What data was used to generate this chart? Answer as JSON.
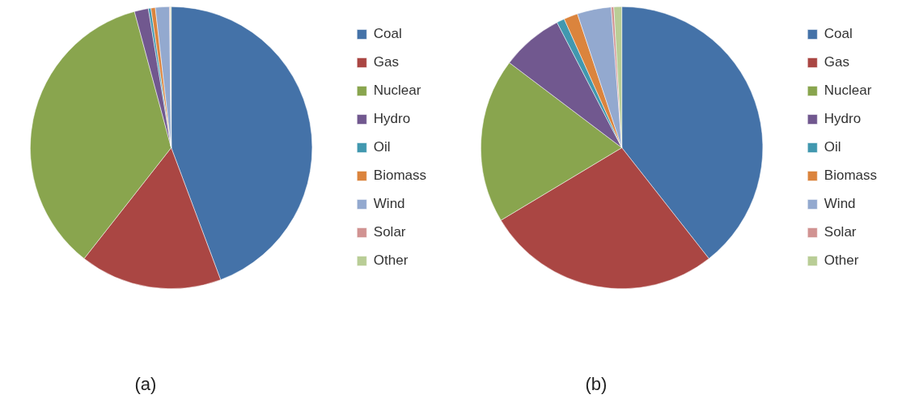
{
  "chart_data": [
    {
      "type": "pie",
      "title": "(a)",
      "categories": [
        "Coal",
        "Gas",
        "Nuclear",
        "Hydro",
        "Oil",
        "Biomass",
        "Wind",
        "Solar",
        "Other"
      ],
      "values": [
        44.3,
        16.3,
        35.2,
        1.6,
        0.3,
        0.5,
        1.6,
        0.1,
        0.1
      ],
      "colors": [
        "#4472a8",
        "#aa4643",
        "#89a54e",
        "#71588f",
        "#4198af",
        "#db843d",
        "#93a9cf",
        "#d19392",
        "#b9cd96"
      ],
      "legend": "right"
    },
    {
      "type": "pie",
      "title": "(b)",
      "categories": [
        "Coal",
        "Gas",
        "Nuclear",
        "Hydro",
        "Oil",
        "Biomass",
        "Wind",
        "Solar",
        "Other"
      ],
      "values": [
        39.4,
        27.0,
        18.9,
        7.1,
        0.9,
        1.6,
        3.9,
        0.3,
        0.9
      ],
      "colors": [
        "#4472a8",
        "#aa4643",
        "#89a54e",
        "#71588f",
        "#4198af",
        "#db843d",
        "#93a9cf",
        "#d19392",
        "#b9cd96"
      ],
      "legend": "right"
    }
  ]
}
